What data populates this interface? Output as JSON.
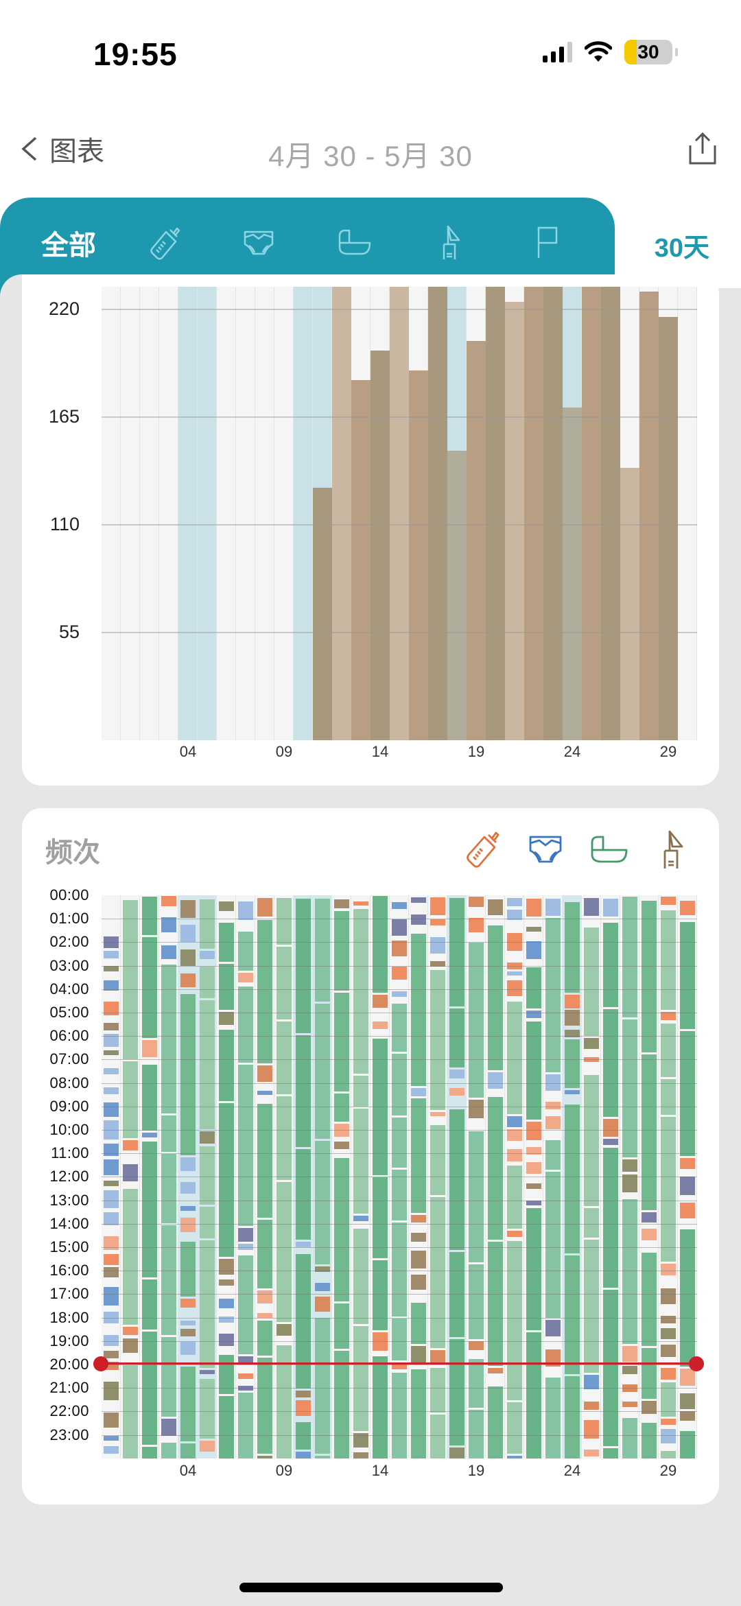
{
  "status_bar": {
    "time": "19:55",
    "battery": "30"
  },
  "nav": {
    "back_label": "图表",
    "title": "4月 30 - 5月 30",
    "share_icon": "share-icon"
  },
  "tabs": {
    "items": [
      {
        "label": "全部",
        "icon": null,
        "active": true
      },
      {
        "label": "",
        "icon": "bottle-icon"
      },
      {
        "label": "",
        "icon": "diaper-icon"
      },
      {
        "label": "",
        "icon": "bassinet-icon"
      },
      {
        "label": "",
        "icon": "breast-pump-icon"
      },
      {
        "label": "",
        "icon": "flag-icon"
      }
    ],
    "range_label": "30天"
  },
  "colors": {
    "accent": "#1e98ae",
    "bar_light": "#c9b7a2",
    "bar_mid": "#b89f84",
    "bar_dark": "#a8987d",
    "bar_on_blue": "#b0ad9b",
    "highlight_bg": "#c9e1e7",
    "feed": "#ef8c62",
    "diaper": "#6f9bd1",
    "sleep": "#73b990",
    "pump": "#a08a6a",
    "now_line": "#c8232c"
  },
  "chart_data": [
    {
      "type": "bar",
      "title": "",
      "xlabel": "",
      "ylabel": "",
      "y_ticks": [
        "220",
        "165",
        "110",
        "55"
      ],
      "x_ticks": [
        "04",
        "09",
        "14",
        "19",
        "24",
        "29"
      ],
      "ylim": [
        0,
        232
      ],
      "categories": [
        "30",
        "01",
        "02",
        "03",
        "04",
        "05",
        "06",
        "07",
        "08",
        "09",
        "10",
        "11",
        "12",
        "13",
        "14",
        "15",
        "16",
        "17",
        "18",
        "19",
        "20",
        "21",
        "22",
        "23",
        "24",
        "25",
        "26",
        "27",
        "28",
        "29",
        "30"
      ],
      "values": [
        0,
        0,
        0,
        0,
        0,
        0,
        0,
        0,
        0,
        0,
        0,
        129,
        232,
        184,
        199,
        232,
        189,
        232,
        148,
        204,
        232,
        224,
        232,
        232,
        170,
        232,
        232,
        139,
        229,
        216,
        0
      ],
      "highlighted_days": [
        "04",
        "05",
        "10",
        "11",
        "18",
        "24"
      ],
      "note": "bars beyond 232 are clipped at the top of the visible area"
    },
    {
      "type": "heatmap",
      "title": "频次",
      "legend": [
        {
          "name": "bottle-icon",
          "color": "#e1703b"
        },
        {
          "name": "diaper-icon",
          "color": "#3a76bf"
        },
        {
          "name": "bassinet-icon",
          "color": "#3f9a66"
        },
        {
          "name": "breast-pump-icon",
          "color": "#8a6f4d"
        }
      ],
      "y_ticks": [
        "00:00",
        "01:00",
        "02:00",
        "03:00",
        "04:00",
        "05:00",
        "06:00",
        "07:00",
        "08:00",
        "09:00",
        "10:00",
        "11:00",
        "12:00",
        "13:00",
        "14:00",
        "15:00",
        "16:00",
        "17:00",
        "18:00",
        "19:00",
        "20:00",
        "21:00",
        "22:00",
        "23:00"
      ],
      "x_ticks": [
        "04",
        "09",
        "14",
        "19",
        "24",
        "29"
      ],
      "current_time_marker": "20:00",
      "days": 31
    }
  ],
  "card2": {
    "title": "频次"
  }
}
